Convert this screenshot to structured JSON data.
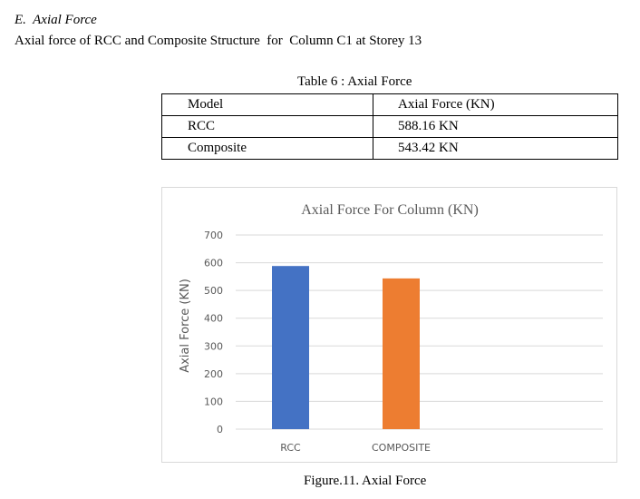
{
  "section": {
    "heading": "E.  Axial Force",
    "subheading": "Axial force of RCC and Composite Structure  for  Column C1 at Storey 13"
  },
  "table": {
    "caption": "Table 6 : Axial Force",
    "headers": [
      "Model",
      "Axial Force (KN)"
    ],
    "rows": [
      [
        "RCC",
        "588.16 KN"
      ],
      [
        "Composite",
        "543.42 KN"
      ]
    ]
  },
  "chart_data": {
    "type": "bar",
    "title": "Axial Force For Column (KN)",
    "xlabel": "",
    "ylabel": "Axial Force (KN)",
    "categories": [
      "RCC",
      "COMPOSITE"
    ],
    "values": [
      588.16,
      543.42
    ],
    "colors": [
      "#4472c4",
      "#ed7d31"
    ],
    "ylim": [
      0,
      700
    ],
    "yticks": [
      0,
      100,
      200,
      300,
      400,
      500,
      600,
      700
    ],
    "grid": true
  },
  "figure": {
    "caption": "Figure.11. Axial Force"
  }
}
